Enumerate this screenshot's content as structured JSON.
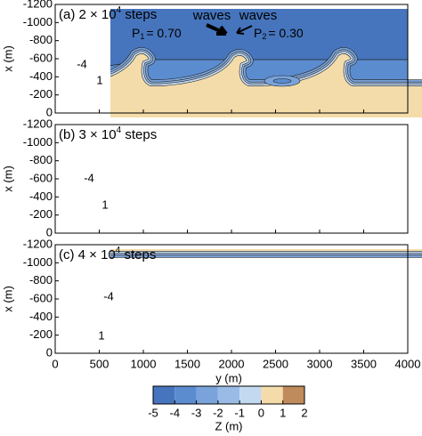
{
  "chart_data": {
    "type": "contour",
    "x_label": "y (m)",
    "y_label": "x (m)",
    "xlim": [
      0,
      4000
    ],
    "xticks": [
      0,
      500,
      1000,
      1500,
      2000,
      2500,
      3000,
      3500,
      4000
    ],
    "ylim": [
      -1200,
      0
    ],
    "yticks": [
      -1200,
      -1000,
      -800,
      -600,
      -400,
      -200,
      0
    ],
    "invert_y": true,
    "panels": [
      {
        "title": {
          "prefix": "(a) 2 × 10",
          "exponent": "4",
          "suffix": " steps"
        },
        "contour_labels": [
          -4,
          1
        ]
      },
      {
        "title": {
          "prefix": "(b) 3 × 10",
          "exponent": "4",
          "suffix": " steps"
        },
        "contour_labels": [
          -4,
          1
        ]
      },
      {
        "title": {
          "prefix": "(c) 4 × 10",
          "exponent": "4",
          "suffix": " steps"
        },
        "contour_labels": [
          -4,
          1
        ]
      }
    ],
    "annotations": {
      "left": "waves",
      "right": "waves",
      "p1": {
        "main": "P",
        "sub": "1",
        "rest": "= 0.70"
      },
      "p2": {
        "main": "P",
        "sub": "2",
        "rest": "= 0.30"
      }
    },
    "colorbar": {
      "label": "Z (m)",
      "levels": [
        -5,
        -4,
        -3,
        -2,
        -1,
        0,
        1,
        2
      ],
      "colors": [
        "#4675bd",
        "#5b8ccf",
        "#7aa3db",
        "#99bbe6",
        "#c3d9f0",
        "#f4dcaa",
        "#c08b5c"
      ]
    }
  }
}
